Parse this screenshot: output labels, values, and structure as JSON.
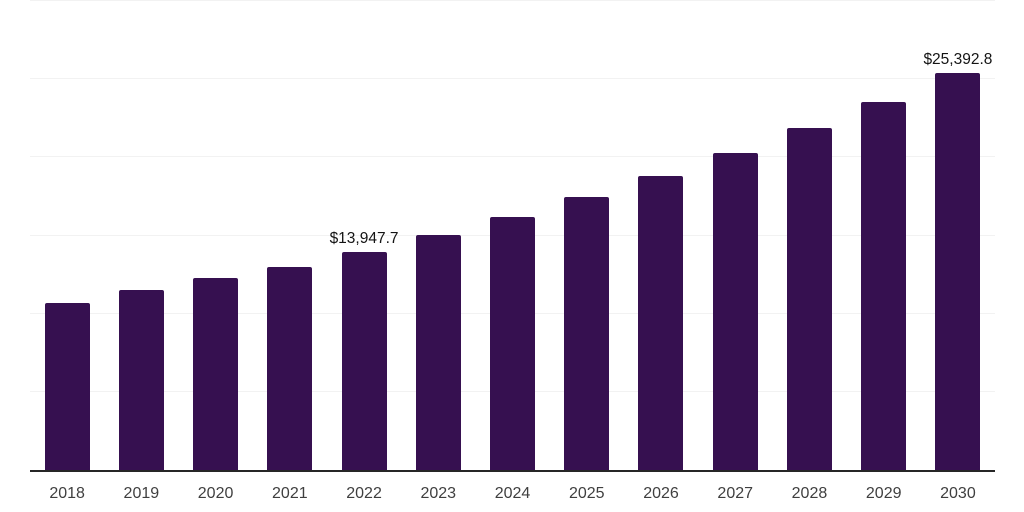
{
  "page": {
    "background": "#ffffff"
  },
  "chart_data": {
    "type": "bar",
    "title": "",
    "xlabel": "",
    "ylabel": "",
    "legend": false,
    "grid": true,
    "categories": [
      "2018",
      "2019",
      "2020",
      "2021",
      "2022",
      "2023",
      "2024",
      "2025",
      "2026",
      "2027",
      "2028",
      "2029",
      "2030"
    ],
    "values": [
      10680,
      11500,
      12280,
      13000,
      13947.7,
      15030,
      16200,
      17465,
      18825,
      20290,
      21870,
      23570,
      25392.8
    ],
    "data_labels": [
      "",
      "",
      "",
      "",
      "$13,947.7",
      "",
      "",
      "",
      "",
      "",
      "",
      "",
      "$25,392.8"
    ],
    "ylim": [
      0,
      30000
    ],
    "grid_step": 5000,
    "colors": {
      "bar": "#361050",
      "grid": "#f2f2f2",
      "axis": "#262626",
      "xlabel": "#3f3f3f",
      "data_label": "#141414"
    }
  }
}
